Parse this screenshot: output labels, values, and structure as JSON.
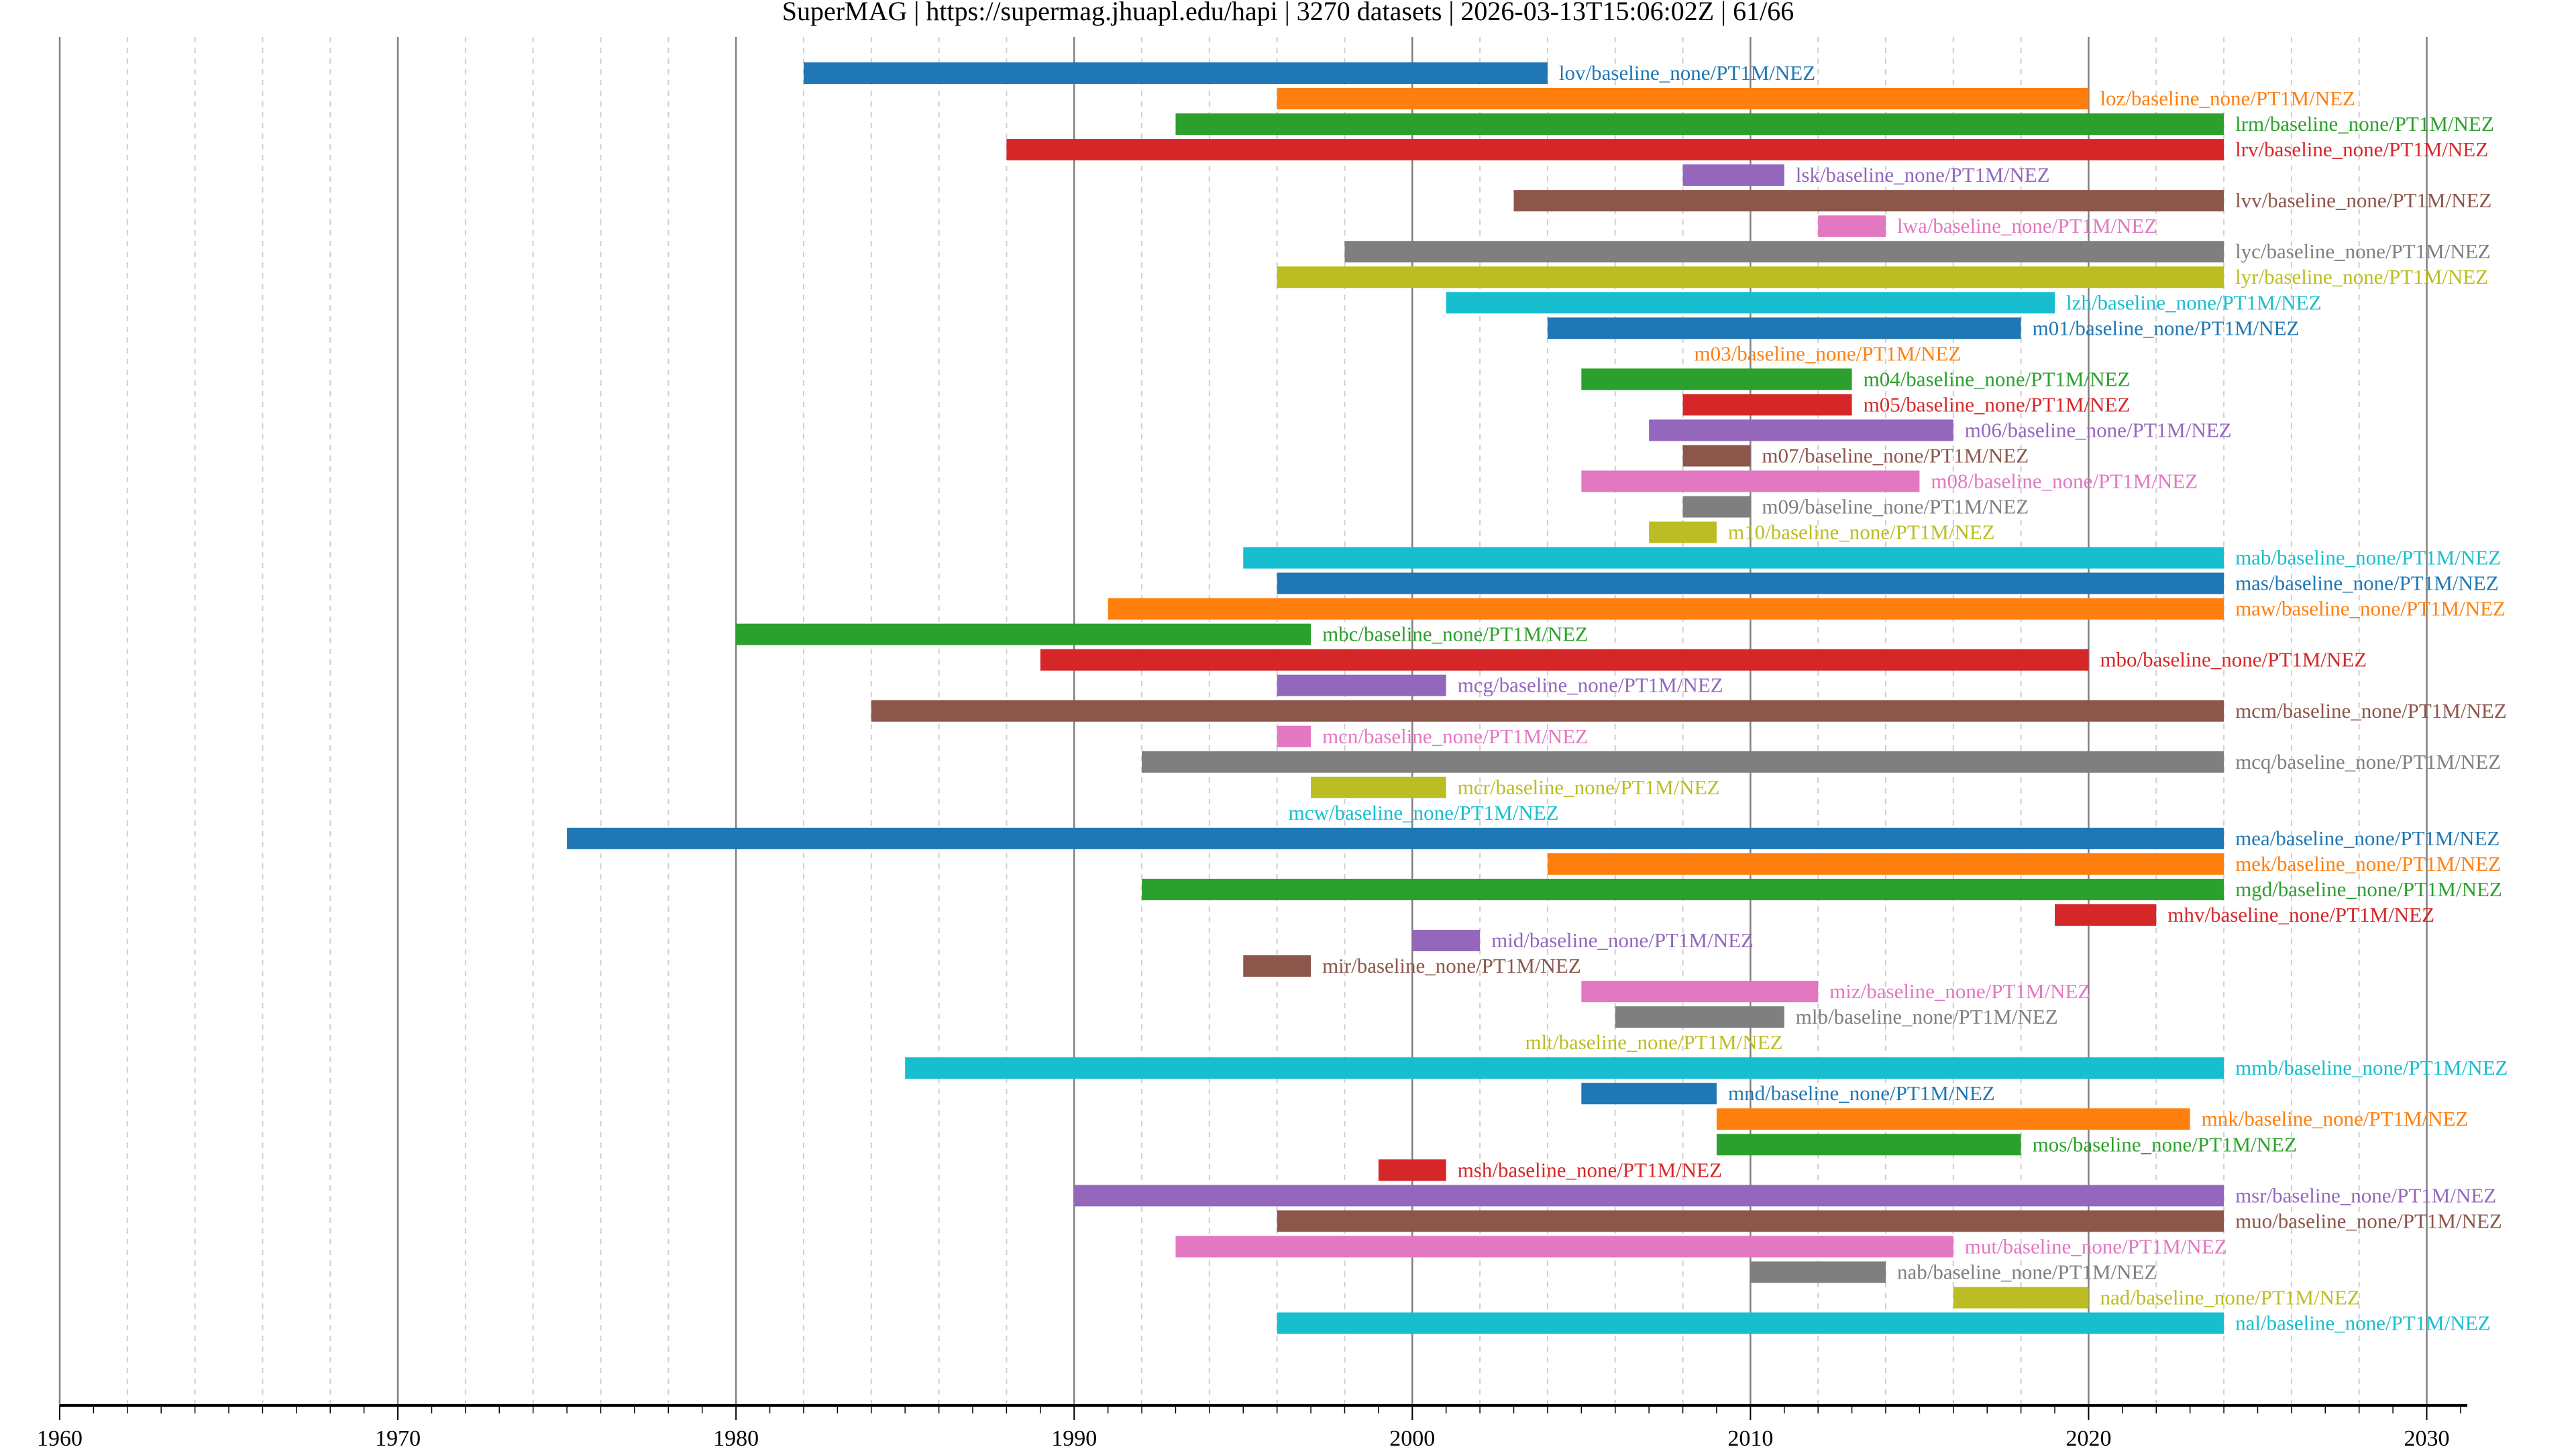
{
  "chart_data": {
    "type": "bar",
    "orientation": "horizontal-timeline",
    "title": "SuperMAG | https://supermag.jhuapl.edu/hapi | 3270 datasets | 2026-03-13T15:06:02Z | 61/66",
    "xlabel": "",
    "ylabel": "",
    "xlim": [
      1960,
      2031.2
    ],
    "xticks": [
      "1960",
      "1970",
      "1980",
      "1990",
      "2000",
      "2010",
      "2020",
      "2030"
    ],
    "minor_grid_step_years": 2,
    "grid": true,
    "colors": [
      "#1f77b4",
      "#ff7f0e",
      "#2ca02c",
      "#d62728",
      "#9467bd",
      "#8c564b",
      "#e377c2",
      "#7f7f7f",
      "#bcbd22",
      "#17becf"
    ],
    "series": [
      {
        "name": "lov/baseline_none/PT1M/NEZ",
        "start": 1982,
        "end": 2004
      },
      {
        "name": "loz/baseline_none/PT1M/NEZ",
        "start": 1996,
        "end": 2020
      },
      {
        "name": "lrm/baseline_none/PT1M/NEZ",
        "start": 1993,
        "end": 2024
      },
      {
        "name": "lrv/baseline_none/PT1M/NEZ",
        "start": 1988,
        "end": 2024
      },
      {
        "name": "lsk/baseline_none/PT1M/NEZ",
        "start": 2008,
        "end": 2011
      },
      {
        "name": "lvv/baseline_none/PT1M/NEZ",
        "start": 2003,
        "end": 2024
      },
      {
        "name": "lwa/baseline_none/PT1M/NEZ",
        "start": 2012,
        "end": 2014
      },
      {
        "name": "lyc/baseline_none/PT1M/NEZ",
        "start": 1998,
        "end": 2024
      },
      {
        "name": "lyr/baseline_none/PT1M/NEZ",
        "start": 1996,
        "end": 2024
      },
      {
        "name": "lzh/baseline_none/PT1M/NEZ",
        "start": 2001,
        "end": 2019
      },
      {
        "name": "m01/baseline_none/PT1M/NEZ",
        "start": 2004,
        "end": 2018
      },
      {
        "name": "m03/baseline_none/PT1M/NEZ",
        "start": 2008,
        "end": 2008
      },
      {
        "name": "m04/baseline_none/PT1M/NEZ",
        "start": 2005,
        "end": 2013
      },
      {
        "name": "m05/baseline_none/PT1M/NEZ",
        "start": 2008,
        "end": 2013
      },
      {
        "name": "m06/baseline_none/PT1M/NEZ",
        "start": 2007,
        "end": 2016
      },
      {
        "name": "m07/baseline_none/PT1M/NEZ",
        "start": 2008,
        "end": 2010
      },
      {
        "name": "m08/baseline_none/PT1M/NEZ",
        "start": 2005,
        "end": 2015
      },
      {
        "name": "m09/baseline_none/PT1M/NEZ",
        "start": 2008,
        "end": 2010
      },
      {
        "name": "m10/baseline_none/PT1M/NEZ",
        "start": 2007,
        "end": 2009
      },
      {
        "name": "mab/baseline_none/PT1M/NEZ",
        "start": 1995,
        "end": 2024
      },
      {
        "name": "mas/baseline_none/PT1M/NEZ",
        "start": 1996,
        "end": 2024
      },
      {
        "name": "maw/baseline_none/PT1M/NEZ",
        "start": 1991,
        "end": 2024
      },
      {
        "name": "mbc/baseline_none/PT1M/NEZ",
        "start": 1980,
        "end": 1997
      },
      {
        "name": "mbo/baseline_none/PT1M/NEZ",
        "start": 1989,
        "end": 2020
      },
      {
        "name": "mcg/baseline_none/PT1M/NEZ",
        "start": 1996,
        "end": 2001
      },
      {
        "name": "mcm/baseline_none/PT1M/NEZ",
        "start": 1984,
        "end": 2024
      },
      {
        "name": "mcn/baseline_none/PT1M/NEZ",
        "start": 1996,
        "end": 1997
      },
      {
        "name": "mcq/baseline_none/PT1M/NEZ",
        "start": 1992,
        "end": 2024
      },
      {
        "name": "mcr/baseline_none/PT1M/NEZ",
        "start": 1997,
        "end": 2001
      },
      {
        "name": "mcw/baseline_none/PT1M/NEZ",
        "start": 1996,
        "end": 1996
      },
      {
        "name": "mea/baseline_none/PT1M/NEZ",
        "start": 1975,
        "end": 2024
      },
      {
        "name": "mek/baseline_none/PT1M/NEZ",
        "start": 2004,
        "end": 2024
      },
      {
        "name": "mgd/baseline_none/PT1M/NEZ",
        "start": 1992,
        "end": 2024
      },
      {
        "name": "mhv/baseline_none/PT1M/NEZ",
        "start": 2019,
        "end": 2022
      },
      {
        "name": "mid/baseline_none/PT1M/NEZ",
        "start": 2000,
        "end": 2002
      },
      {
        "name": "mir/baseline_none/PT1M/NEZ",
        "start": 1995,
        "end": 1997
      },
      {
        "name": "miz/baseline_none/PT1M/NEZ",
        "start": 2005,
        "end": 2012
      },
      {
        "name": "mlb/baseline_none/PT1M/NEZ",
        "start": 2006,
        "end": 2011
      },
      {
        "name": "mlt/baseline_none/PT1M/NEZ",
        "start": 2003,
        "end": 2003
      },
      {
        "name": "mmb/baseline_none/PT1M/NEZ",
        "start": 1985,
        "end": 2024
      },
      {
        "name": "mnd/baseline_none/PT1M/NEZ",
        "start": 2005,
        "end": 2009
      },
      {
        "name": "mnk/baseline_none/PT1M/NEZ",
        "start": 2009,
        "end": 2023
      },
      {
        "name": "mos/baseline_none/PT1M/NEZ",
        "start": 2009,
        "end": 2018
      },
      {
        "name": "msh/baseline_none/PT1M/NEZ",
        "start": 1999,
        "end": 2001
      },
      {
        "name": "msr/baseline_none/PT1M/NEZ",
        "start": 1990,
        "end": 2024
      },
      {
        "name": "muo/baseline_none/PT1M/NEZ",
        "start": 1996,
        "end": 2024
      },
      {
        "name": "mut/baseline_none/PT1M/NEZ",
        "start": 1993,
        "end": 2016
      },
      {
        "name": "nab/baseline_none/PT1M/NEZ",
        "start": 2010,
        "end": 2014
      },
      {
        "name": "nad/baseline_none/PT1M/NEZ",
        "start": 2016,
        "end": 2020
      },
      {
        "name": "nal/baseline_none/PT1M/NEZ",
        "start": 1996,
        "end": 2024
      }
    ]
  }
}
